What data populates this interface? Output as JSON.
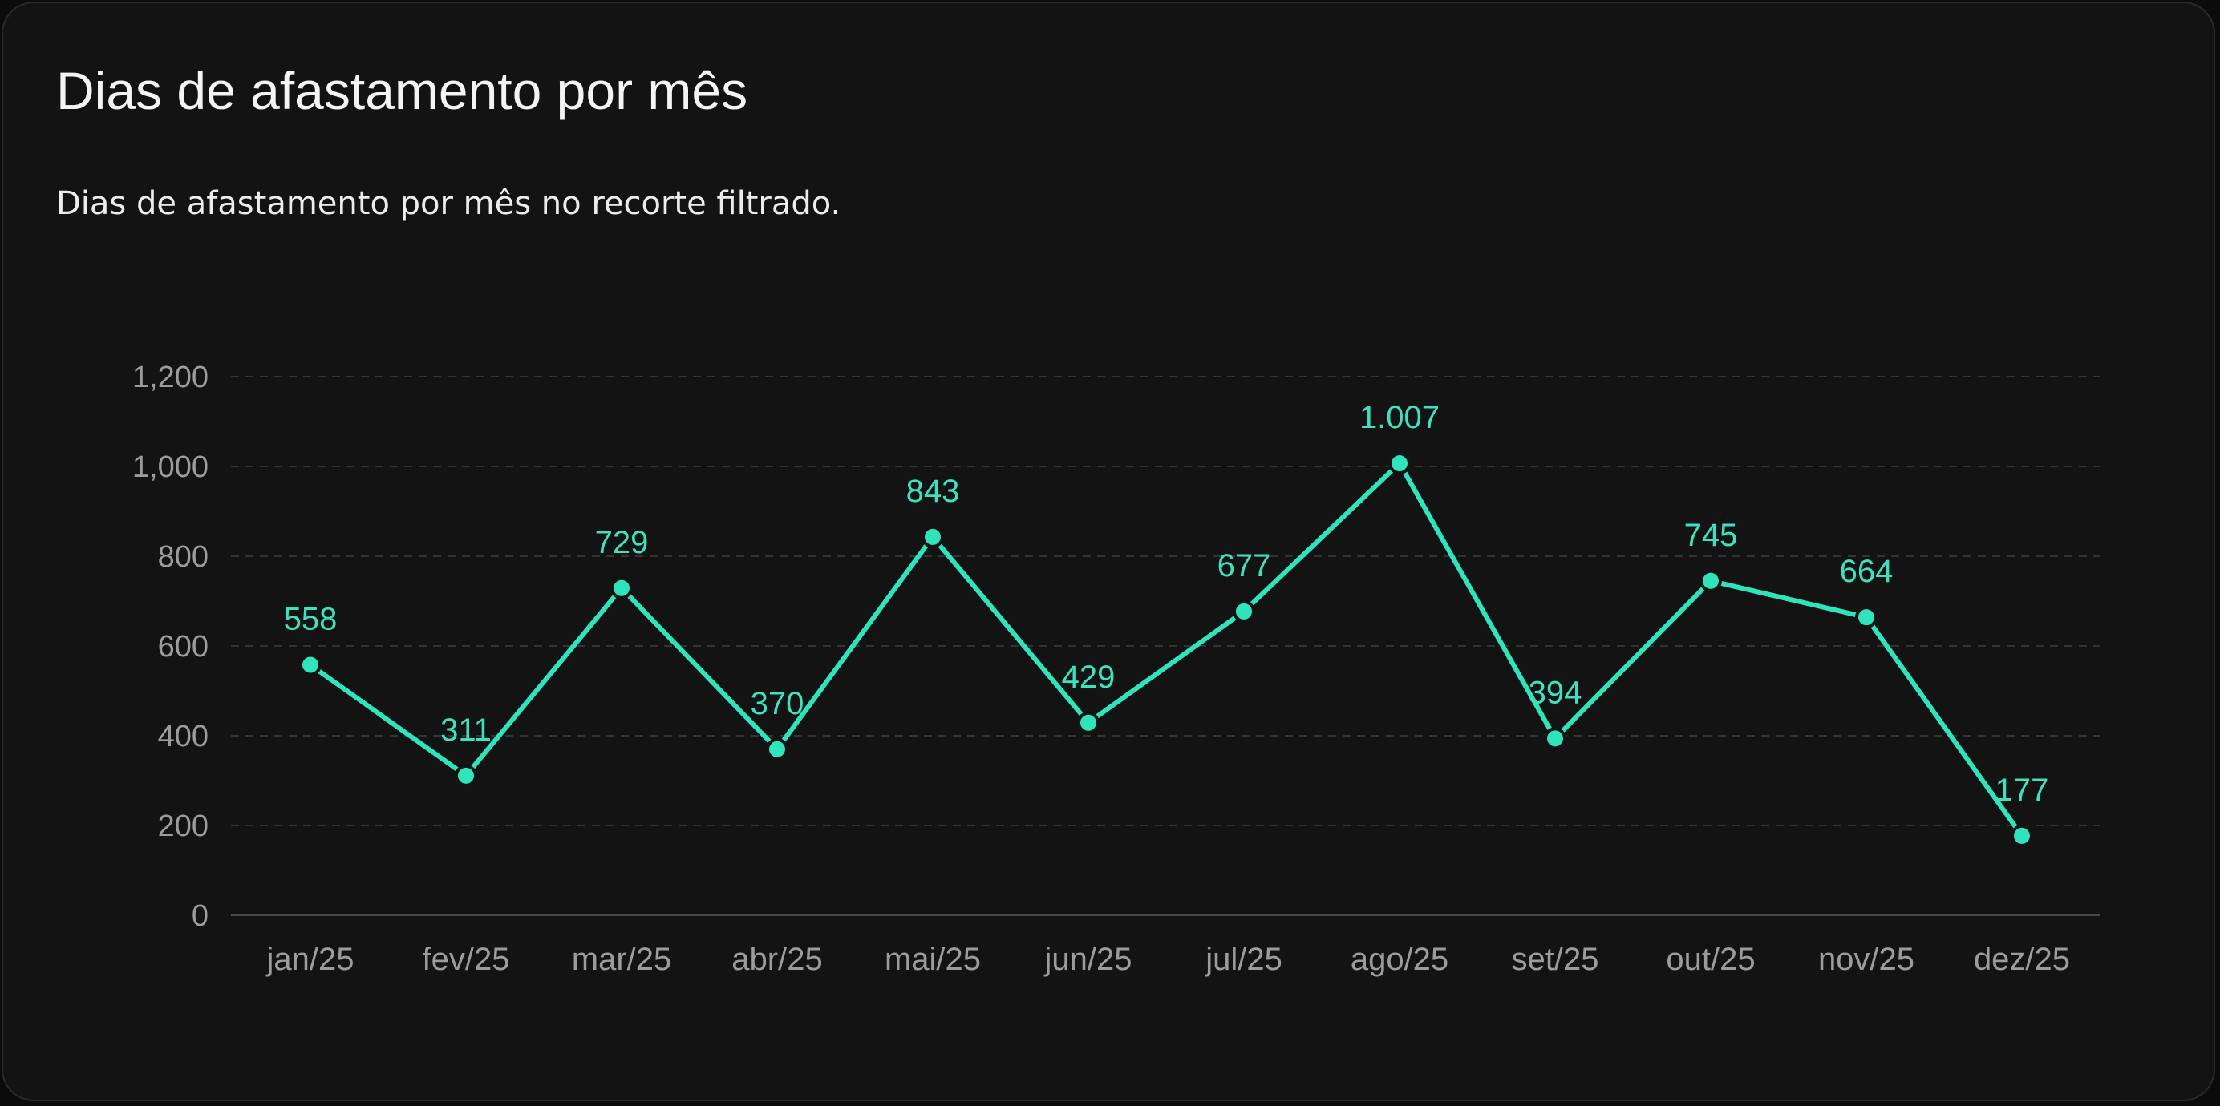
{
  "header": {
    "title": "Dias de afastamento por mês",
    "subtitle": "Dias de afastamento por mês no recorte filtrado."
  },
  "colors": {
    "background": "#131313",
    "accent": "#2fe3bb",
    "grid": "#333333",
    "axis_text": "#9c9c9c"
  },
  "chart_data": {
    "type": "line",
    "categories": [
      "jan/25",
      "fev/25",
      "mar/25",
      "abr/25",
      "mai/25",
      "jun/25",
      "jul/25",
      "ago/25",
      "set/25",
      "out/25",
      "nov/25",
      "dez/25"
    ],
    "values": [
      558,
      311,
      729,
      370,
      843,
      429,
      677,
      1007,
      394,
      745,
      664,
      177
    ],
    "data_labels": [
      "558",
      "311",
      "729",
      "370",
      "843",
      "429",
      "677",
      "1.007",
      "394",
      "745",
      "664",
      "177"
    ],
    "y_ticks": [
      0,
      200,
      400,
      600,
      800,
      1000,
      1200
    ],
    "y_tick_labels": [
      "0",
      "200",
      "400",
      "600",
      "800",
      "1,000",
      "1,200"
    ],
    "ylim": [
      0,
      1200
    ],
    "grid": true,
    "legend": false
  }
}
